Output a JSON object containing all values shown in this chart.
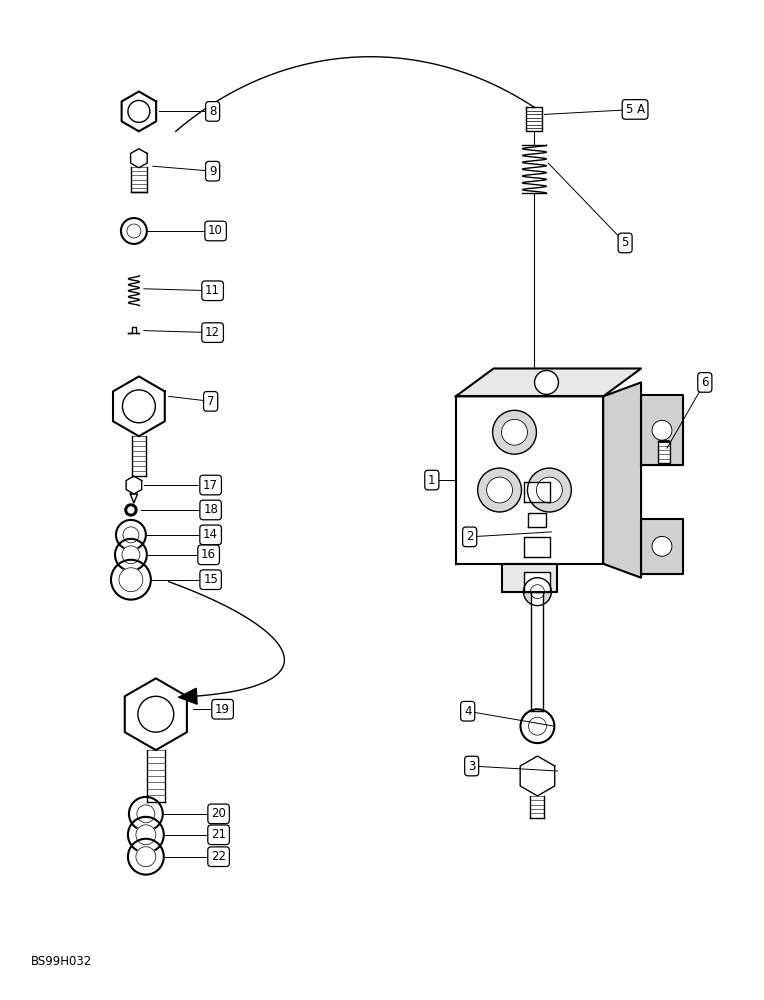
{
  "bg_color": "#ffffff",
  "line_color": "#000000",
  "fig_width": 7.64,
  "fig_height": 10.0,
  "watermark": "BS99H032"
}
